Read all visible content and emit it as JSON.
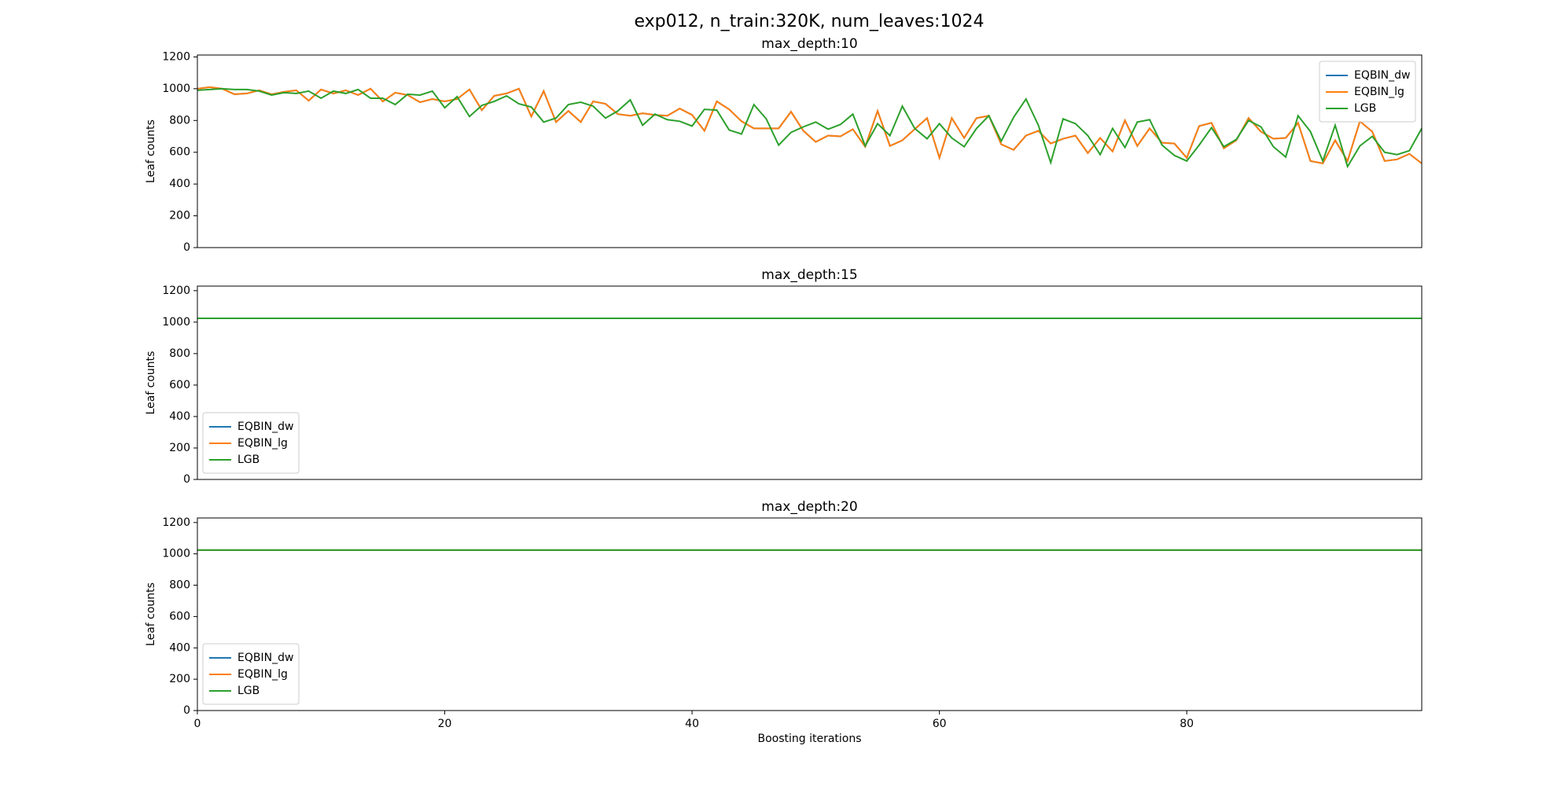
{
  "title": "exp012, n_train:320K, num_leaves:1024",
  "chart_data": [
    {
      "type": "line",
      "title": "max_depth:10",
      "y_label": "Leaf counts",
      "legend": "upper right",
      "x": [
        0,
        1,
        2,
        3,
        4,
        5,
        6,
        7,
        8,
        9,
        10,
        11,
        12,
        13,
        14,
        15,
        16,
        17,
        18,
        19,
        20,
        21,
        22,
        23,
        24,
        25,
        26,
        27,
        28,
        29,
        30,
        31,
        32,
        33,
        34,
        35,
        36,
        37,
        38,
        39,
        40,
        41,
        42,
        43,
        44,
        45,
        46,
        47,
        48,
        49,
        50,
        51,
        52,
        53,
        54,
        55,
        56,
        57,
        58,
        59,
        60,
        61,
        62,
        63,
        64,
        65,
        66,
        67,
        68,
        69,
        70,
        71,
        72,
        73,
        74,
        75,
        76,
        77,
        78,
        79,
        80,
        81,
        82,
        83,
        84,
        85,
        86,
        87,
        88,
        89,
        90,
        91,
        92,
        93,
        94,
        95,
        96,
        97,
        98,
        99
      ],
      "xlim": [
        0,
        99
      ],
      "ylim": [
        0,
        1212
      ],
      "yticks": [
        0,
        200,
        400,
        600,
        800,
        1000,
        1200
      ],
      "series": [
        {
          "name": "EQBIN_dw",
          "color": "#1f77b4",
          "values": [
            1000,
            1010,
            1000,
            965,
            970,
            990,
            965,
            980,
            990,
            925,
            995,
            970,
            990,
            960,
            1000,
            920,
            975,
            960,
            915,
            935,
            920,
            935,
            995,
            865,
            955,
            970,
            1000,
            825,
            985,
            790,
            860,
            790,
            920,
            905,
            840,
            830,
            845,
            835,
            830,
            875,
            835,
            735,
            920,
            870,
            795,
            750,
            750,
            750,
            855,
            735,
            665,
            705,
            700,
            745,
            635,
            860,
            640,
            675,
            745,
            815,
            565,
            815,
            690,
            815,
            830,
            650,
            615,
            705,
            735,
            655,
            685,
            705,
            595,
            690,
            605,
            800,
            640,
            750,
            660,
            655,
            565,
            765,
            785,
            625,
            675,
            815,
            730,
            685,
            690,
            785,
            545,
            530,
            675,
            545,
            795,
            730,
            545,
            555,
            590,
            530
          ]
        },
        {
          "name": "EQBIN_lg",
          "color": "#ff7f0e",
          "values": [
            1000,
            1010,
            1000,
            965,
            970,
            990,
            965,
            980,
            990,
            925,
            995,
            970,
            990,
            960,
            1000,
            920,
            975,
            960,
            915,
            935,
            920,
            935,
            995,
            865,
            955,
            970,
            1000,
            825,
            985,
            790,
            860,
            790,
            920,
            905,
            840,
            830,
            845,
            835,
            830,
            875,
            835,
            735,
            920,
            870,
            795,
            750,
            750,
            750,
            855,
            735,
            665,
            705,
            700,
            745,
            635,
            860,
            640,
            675,
            745,
            815,
            565,
            815,
            690,
            815,
            830,
            650,
            615,
            705,
            735,
            655,
            685,
            705,
            595,
            690,
            605,
            800,
            640,
            750,
            660,
            655,
            565,
            765,
            785,
            625,
            675,
            815,
            730,
            685,
            690,
            785,
            545,
            530,
            675,
            545,
            795,
            730,
            545,
            555,
            590,
            530
          ]
        },
        {
          "name": "LGB",
          "color": "#2ca02c",
          "values": [
            990,
            995,
            1000,
            995,
            995,
            985,
            960,
            975,
            970,
            985,
            940,
            985,
            970,
            995,
            940,
            940,
            900,
            965,
            960,
            985,
            880,
            950,
            825,
            895,
            920,
            955,
            905,
            885,
            790,
            815,
            900,
            915,
            890,
            815,
            860,
            930,
            770,
            840,
            805,
            795,
            765,
            870,
            865,
            740,
            715,
            900,
            810,
            645,
            725,
            760,
            790,
            745,
            775,
            840,
            640,
            780,
            705,
            890,
            750,
            685,
            780,
            690,
            635,
            750,
            830,
            670,
            820,
            935,
            770,
            535,
            810,
            780,
            705,
            585,
            750,
            630,
            790,
            805,
            645,
            580,
            545,
            645,
            755,
            635,
            680,
            800,
            760,
            635,
            570,
            830,
            730,
            545,
            770,
            510,
            640,
            700,
            600,
            585,
            610,
            750
          ]
        }
      ]
    },
    {
      "type": "line",
      "title": "max_depth:15",
      "y_label": "Leaf counts",
      "legend": "lower left",
      "x": [
        0,
        99
      ],
      "xlim": [
        0,
        99
      ],
      "ylim": [
        0,
        1229
      ],
      "yticks": [
        0,
        200,
        400,
        600,
        800,
        1000,
        1200
      ],
      "series": [
        {
          "name": "EQBIN_dw",
          "color": "#1f77b4",
          "values": [
            1024,
            1024
          ]
        },
        {
          "name": "EQBIN_lg",
          "color": "#ff7f0e",
          "values": [
            1024,
            1024
          ]
        },
        {
          "name": "LGB",
          "color": "#2ca02c",
          "values": [
            1024,
            1024
          ]
        }
      ]
    },
    {
      "type": "line",
      "title": "max_depth:20",
      "y_label": "Leaf counts",
      "x_label": "Boosting iterations",
      "legend": "lower left",
      "x": [
        0,
        99
      ],
      "xlim": [
        0,
        99
      ],
      "xticks": [
        0,
        20,
        40,
        60,
        80
      ],
      "ylim": [
        0,
        1229
      ],
      "yticks": [
        0,
        200,
        400,
        600,
        800,
        1000,
        1200
      ],
      "series": [
        {
          "name": "EQBIN_dw",
          "color": "#1f77b4",
          "values": [
            1024,
            1024
          ]
        },
        {
          "name": "EQBIN_lg",
          "color": "#ff7f0e",
          "values": [
            1024,
            1024
          ]
        },
        {
          "name": "LGB",
          "color": "#2ca02c",
          "values": [
            1024,
            1024
          ]
        }
      ]
    }
  ]
}
